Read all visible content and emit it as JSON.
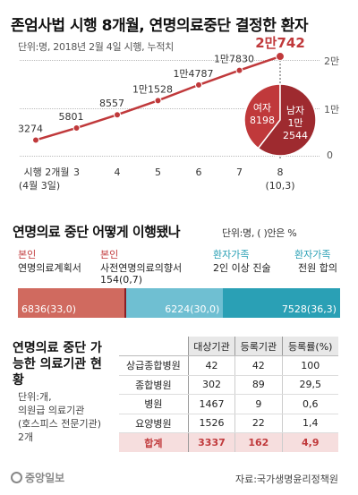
{
  "header": {
    "title": "존엄사법 시행 8개월, 연명의료중단 결정한 환자",
    "subtitle": "단위:명, 2018년 2월 4일 시행, 누적치"
  },
  "chart_data": [
    {
      "type": "line",
      "x": [
        "시행 2개월",
        "3",
        "4",
        "5",
        "6",
        "7",
        "8"
      ],
      "x_sublabels": [
        "(4월 3일)",
        "",
        "",
        "",
        "",
        "",
        "(10,3)"
      ],
      "values": [
        3274,
        5801,
        8557,
        11528,
        14787,
        17830,
        20742
      ],
      "value_labels": [
        "3274",
        "5801",
        "8557",
        "1만1528",
        "1만4787",
        "1만7830",
        "2만742"
      ],
      "ylim": [
        0,
        20000
      ],
      "yticks": [
        0,
        10000,
        20000
      ],
      "ytick_labels": [
        "0",
        "1만",
        "2만"
      ],
      "grid": true,
      "line_color": "#c0393b"
    },
    {
      "type": "pie",
      "labels": [
        "여자",
        "남자"
      ],
      "values": [
        8198,
        12544
      ],
      "value_labels": [
        "8198",
        "1만\n2544"
      ],
      "colors": [
        "#c0393b",
        "#9e2a2f"
      ]
    },
    {
      "type": "bar",
      "title": "연명의료 중단 어떻게 이행됐나",
      "unit": "단위:명, ( )안은 %",
      "series": [
        {
          "name": "연명의료계획서",
          "group": "본인",
          "values": [
            6836
          ],
          "label": "6836(33,0)",
          "color": "#d06a5f"
        },
        {
          "name": "사전연명의료의향서",
          "group": "본인",
          "values": [
            154
          ],
          "label": "154(0,7)",
          "color": "#8a1f25"
        },
        {
          "name": "2인 이상 진술",
          "group": "환자가족",
          "values": [
            6224
          ],
          "label": "6224(30,0)",
          "color": "#6fbfd2"
        },
        {
          "name": "전원 합의",
          "group": "환자가족",
          "values": [
            7528
          ],
          "label": "7528(36,3)",
          "color": "#2aa0b5"
        }
      ]
    },
    {
      "type": "table",
      "title": "연명의료 중단 가능한 의료기관 현황",
      "unit_lines": [
        "단위:개,",
        "의원급 의료기관",
        "(호스피스 전문기관)",
        "2개"
      ],
      "columns": [
        "",
        "대상기관",
        "등록기관",
        "등록률(%)"
      ],
      "rows": [
        [
          "상급종합병원",
          "42",
          "42",
          "100"
        ],
        [
          "종합병원",
          "302",
          "89",
          "29,5"
        ],
        [
          "병원",
          "1467",
          "9",
          "0,6"
        ],
        [
          "요양병원",
          "1526",
          "22",
          "1,4"
        ]
      ],
      "total": [
        "합계",
        "3337",
        "162",
        "4,9"
      ]
    }
  ],
  "labels": {
    "group_self": "본인",
    "group_family": "환자가족"
  },
  "footer": {
    "logo": "중앙일보",
    "source": "자료:국가생명윤리정책원"
  }
}
